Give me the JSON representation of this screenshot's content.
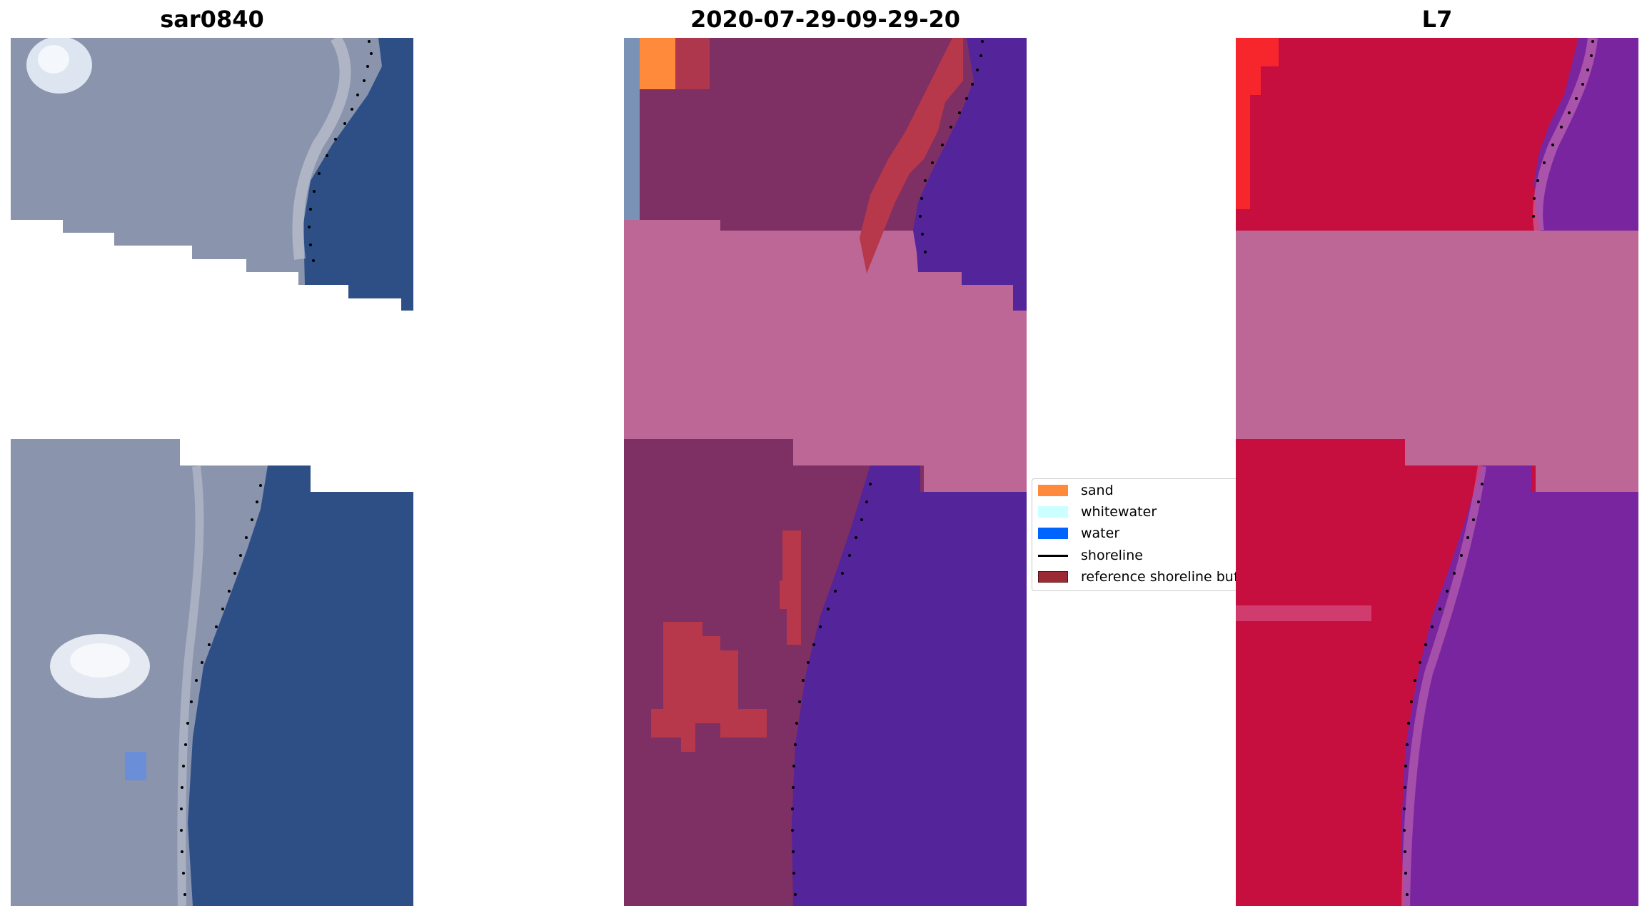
{
  "panels": [
    {
      "title": "sar0840"
    },
    {
      "title": "2020-07-29-09-29-20"
    },
    {
      "title": "L7"
    }
  ],
  "legend": {
    "items": [
      {
        "label": "sand",
        "color": "#ff8a3c",
        "kind": "patch"
      },
      {
        "label": "whitewater",
        "color": "#ccffff",
        "kind": "patch"
      },
      {
        "label": "water",
        "color": "#0064ff",
        "kind": "patch"
      },
      {
        "label": "shoreline",
        "color": "#000000",
        "kind": "line"
      },
      {
        "label": "reference shoreline buffer",
        "color": "#9c2a35",
        "kind": "patch"
      }
    ]
  },
  "colors": {
    "rgb_land": "#8a94ad",
    "rgb_water": "#2e4f86",
    "class_land": "#7e2f64",
    "class_water": "#54249a",
    "class_mask": "#bd6797",
    "class_buffer": "#b6384a",
    "nir_land": "#c60f3f",
    "nir_water": "#7a25a0"
  }
}
